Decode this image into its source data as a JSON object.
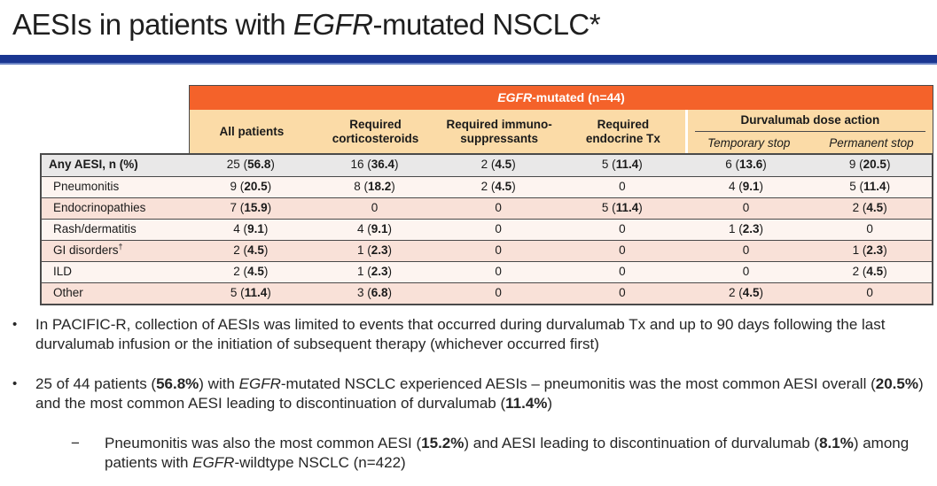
{
  "slide": {
    "title_segments": [
      {
        "t": "AESIs in patients with "
      },
      {
        "t": "EGFR",
        "i": true
      },
      {
        "t": "-mutated NSCLC*"
      }
    ]
  },
  "colors": {
    "accent_bar": "#1A3691",
    "header_orange": "#F4622A",
    "header_peach": "#FBDBA7",
    "row_gray": "#E9E8E8",
    "row_light": "#FDF4F0",
    "row_pink": "#F9E1D8",
    "border_dark": "#4A4A4A"
  },
  "table": {
    "group_header_segments": [
      {
        "t": "EGFR",
        "i": true
      },
      {
        "t": "-mutated (n=44)"
      }
    ],
    "columns": [
      "All patients",
      "Required\ncorticosteroids",
      "Required immuno-\nsuppressants",
      "Required\nendocrine Tx"
    ],
    "dose_group": {
      "label": "Durvalumab dose action",
      "subcolumns": [
        "Temporary stop",
        "Permanent stop"
      ]
    },
    "rows": [
      {
        "label": "Any AESI, n (%)",
        "values": [
          "25 (56.8)",
          "16 (36.4)",
          "2 (4.5)",
          "5 (11.4)",
          "6 (13.6)",
          "9 (20.5)"
        ]
      },
      {
        "label": "Pneumonitis",
        "values": [
          "9 (20.5)",
          "8 (18.2)",
          "2 (4.5)",
          "0",
          "4 (9.1)",
          "5 (11.4)"
        ]
      },
      {
        "label": "Endocrinopathies",
        "values": [
          "7 (15.9)",
          "0",
          "0",
          "5 (11.4)",
          "0",
          "2 (4.5)"
        ]
      },
      {
        "label": "Rash/dermatitis",
        "values": [
          "4 (9.1)",
          "4 (9.1)",
          "0",
          "0",
          "1 (2.3)",
          "0"
        ]
      },
      {
        "label": "GI disorders",
        "sup": "†",
        "values": [
          "2 (4.5)",
          "1 (2.3)",
          "0",
          "0",
          "0",
          "1 (2.3)"
        ]
      },
      {
        "label": "ILD",
        "values": [
          "2 (4.5)",
          "1 (2.3)",
          "0",
          "0",
          "0",
          "2 (4.5)"
        ]
      },
      {
        "label": "Other",
        "values": [
          "5 (11.4)",
          "3 (6.8)",
          "0",
          "0",
          "2 (4.5)",
          "0"
        ]
      }
    ]
  },
  "bullets": {
    "marker_dot": "•",
    "marker_dash": "−",
    "b1_segments": [
      {
        "t": "In PACIFIC-R, collection of AESIs was limited to events that occurred during durvalumab Tx and up to 90 days following the last durvalumab infusion or the initiation of subsequent therapy (whichever occurred first)"
      }
    ],
    "b2_segments": [
      {
        "t": "25 of 44 patients ("
      },
      {
        "t": "56.8%",
        "b": true
      },
      {
        "t": ") with "
      },
      {
        "t": "EGFR",
        "i": true
      },
      {
        "t": "-mutated NSCLC experienced AESIs – pneumonitis was the most common AESI overall ("
      },
      {
        "t": "20.5%",
        "b": true
      },
      {
        "t": ") and the most common AESI leading to discontinuation of durvalumab ("
      },
      {
        "t": "11.4%",
        "b": true
      },
      {
        "t": ")"
      }
    ],
    "b3_segments": [
      {
        "t": "Pneumonitis was also the most common AESI ("
      },
      {
        "t": "15.2%",
        "b": true
      },
      {
        "t": ") and AESI leading to discontinuation of durvalumab ("
      },
      {
        "t": "8.1%",
        "b": true
      },
      {
        "t": ") among patients with "
      },
      {
        "t": "EGFR",
        "i": true
      },
      {
        "t": "-wildtype NSCLC (n=422)"
      }
    ]
  }
}
